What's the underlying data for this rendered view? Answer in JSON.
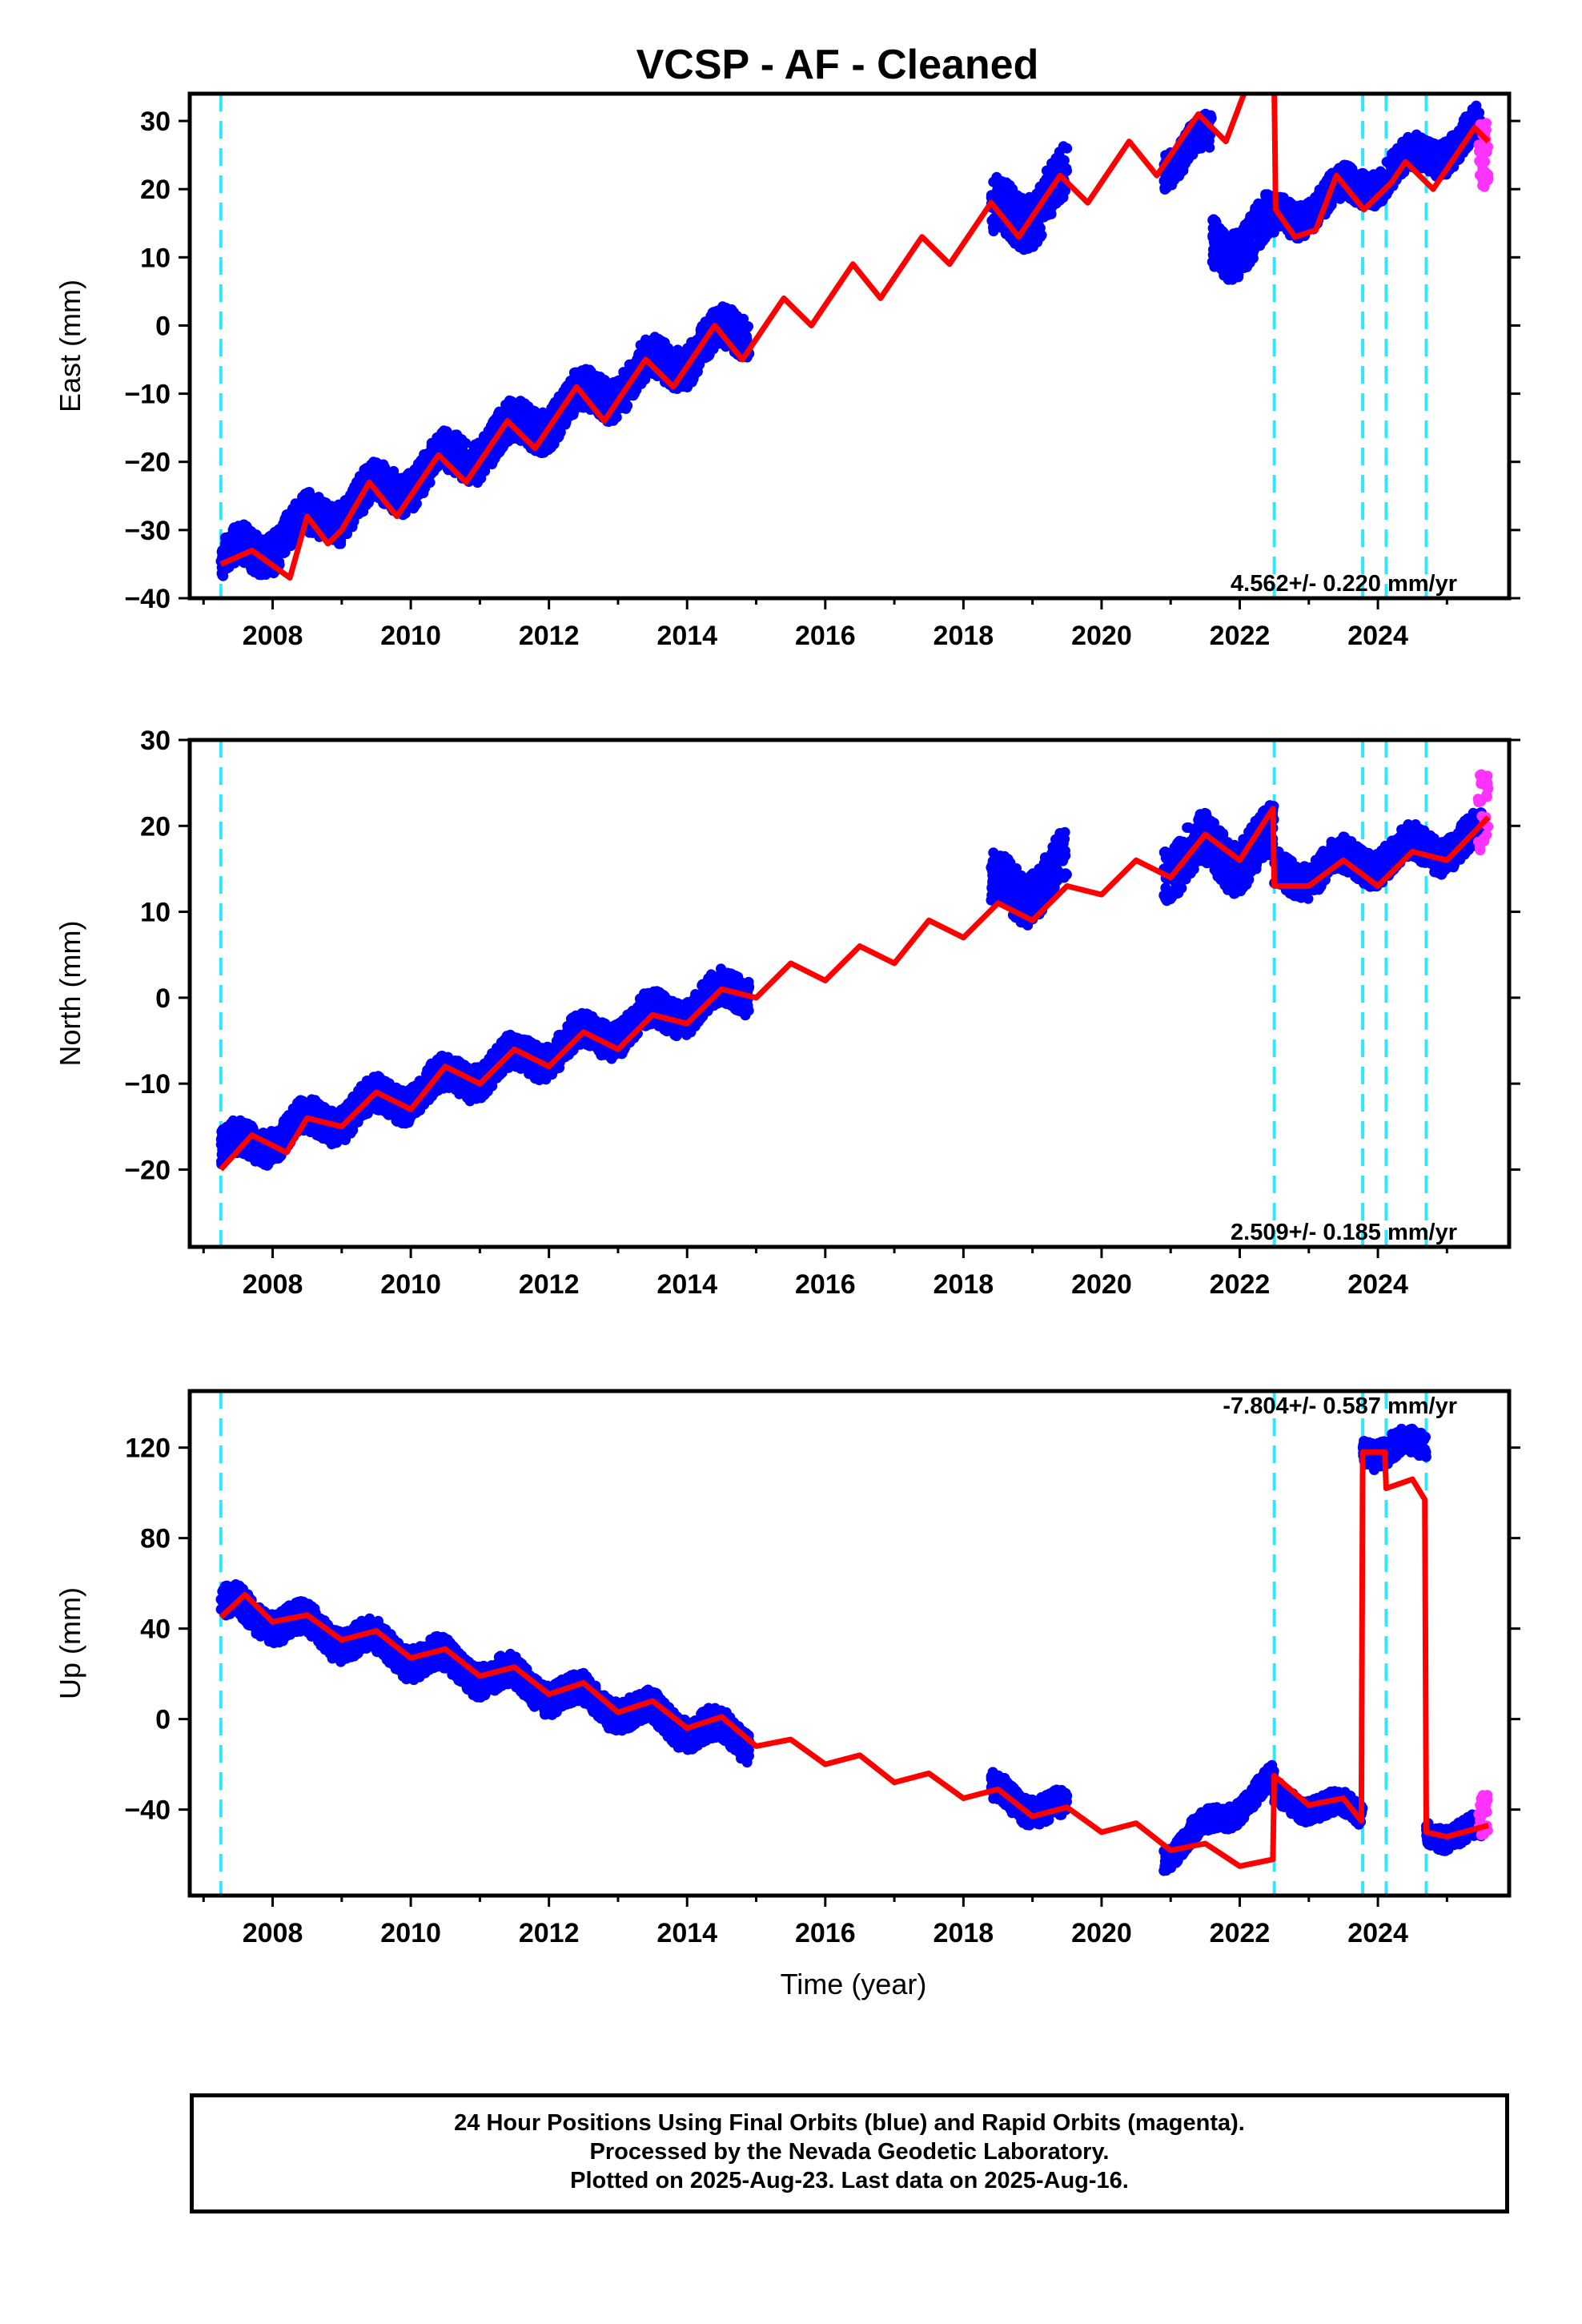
{
  "title": "VCSP  - AF - Cleaned",
  "footer": {
    "line1": "24 Hour Positions Using Final Orbits (blue) and Rapid Orbits (magenta).",
    "line2": "Processed by the Nevada Geodetic Laboratory.",
    "line3": "Plotted on 2025-Aug-23. Last data on 2025-Aug-16."
  },
  "colors": {
    "final_orbits": "#0000ff",
    "rapid_orbits": "#ff33ff",
    "model": "#ff0000",
    "events": "#33e6ff"
  },
  "chart_data": [
    {
      "type": "scatter",
      "ylabel": "East (mm)",
      "xlabel": "",
      "xlim": [
        2006.8,
        2025.9
      ],
      "ylim": [
        -40,
        34
      ],
      "yticks": [
        -40,
        -30,
        -20,
        -10,
        0,
        10,
        20,
        30
      ],
      "xticks": [
        2008,
        2010,
        2012,
        2014,
        2016,
        2018,
        2020,
        2022,
        2024
      ],
      "rate_label": "4.562+/- 0.220 mm/yr",
      "event_lines": [
        2007.25,
        2022.5,
        2023.78,
        2024.12,
        2024.7
      ],
      "model_curve": {
        "name": "model",
        "x": [
          2007.25,
          2007.7,
          2008.25,
          2008.5,
          2008.8,
          2009.0,
          2009.4,
          2009.8,
          2010.4,
          2010.8,
          2011.4,
          2011.8,
          2012.4,
          2012.8,
          2013.4,
          2013.8,
          2014.4,
          2014.8,
          2015.4,
          2015.8,
          2016.4,
          2016.8,
          2017.4,
          2017.8,
          2018.4,
          2018.8,
          2019.4,
          2019.8,
          2020.4,
          2020.8,
          2021.4,
          2021.8,
          2022.1,
          2022.5,
          2022.52,
          2022.8,
          2023.1,
          2023.4,
          2023.8,
          2024.2,
          2024.4,
          2024.8,
          2025.4,
          2025.6
        ],
        "y": [
          -35,
          -33,
          -37,
          -28,
          -32,
          -30,
          -23,
          -28,
          -19,
          -23,
          -14,
          -18,
          -9,
          -14,
          -5,
          -9,
          0,
          -5,
          4,
          0,
          9,
          4,
          13,
          9,
          18,
          13,
          22,
          18,
          27,
          22,
          31,
          27,
          35,
          35,
          17,
          13,
          14,
          22,
          17,
          21,
          24,
          20,
          29,
          27
        ]
      },
      "series": [
        {
          "segments": [
            {
              "x0": 2007.25,
              "x1": 2014.9,
              "slope": 4.56,
              "y0": -35,
              "spread": 6
            },
            {
              "x0": 2018.4,
              "x1": 2019.5,
              "slope": 4.5,
              "y0": 15,
              "spread": 8
            },
            {
              "x0": 2020.9,
              "x1": 2021.6,
              "slope": 5,
              "y0": 24,
              "spread": 5
            },
            {
              "x0": 2021.6,
              "x1": 2022.5,
              "slope": 4,
              "y0": 11,
              "spread": 7
            },
            {
              "x0": 2022.5,
              "x1": 2025.5,
              "slope": 4.5,
              "y0": 15,
              "spread": 5
            }
          ]
        },
        {
          "name": "rapid",
          "x0": 2025.45,
          "x1": 2025.6,
          "y_range": [
            20,
            30
          ]
        }
      ]
    },
    {
      "type": "scatter",
      "ylabel": "North (mm)",
      "xlabel": "",
      "xlim": [
        2006.8,
        2025.9
      ],
      "ylim": [
        -29,
        30
      ],
      "yticks": [
        -20,
        -10,
        0,
        10,
        20,
        30
      ],
      "xticks": [
        2008,
        2010,
        2012,
        2014,
        2016,
        2018,
        2020,
        2022,
        2024
      ],
      "rate_label": "2.509+/- 0.185 mm/yr",
      "event_lines": [
        2007.25,
        2022.5,
        2023.78,
        2024.12,
        2024.7
      ],
      "model_curve": {
        "name": "model",
        "x": [
          2007.25,
          2007.7,
          2008.2,
          2008.5,
          2009.0,
          2009.5,
          2010.0,
          2010.5,
          2011.0,
          2011.5,
          2012.0,
          2012.5,
          2013.0,
          2013.5,
          2014.0,
          2014.5,
          2015.0,
          2015.5,
          2016.0,
          2016.5,
          2017.0,
          2017.5,
          2018.0,
          2018.5,
          2019.0,
          2019.5,
          2020.0,
          2020.5,
          2021.0,
          2021.5,
          2022.0,
          2022.48,
          2022.5,
          2023.0,
          2023.5,
          2024.0,
          2024.5,
          2025.0,
          2025.6
        ],
        "y": [
          -20,
          -16,
          -18,
          -14,
          -15,
          -11,
          -13,
          -8,
          -10,
          -6,
          -8,
          -4,
          -6,
          -2,
          -3,
          1,
          0,
          4,
          2,
          6,
          4,
          9,
          7,
          11,
          9,
          13,
          12,
          16,
          14,
          19,
          16,
          22,
          13,
          13,
          16,
          13,
          17,
          16,
          21
        ]
      },
      "series": [
        {
          "segments": [
            {
              "x0": 2007.25,
              "x1": 2014.9,
              "slope": 2.5,
              "y0": -18,
              "spread": 4
            },
            {
              "x0": 2018.4,
              "x1": 2019.5,
              "slope": 2.5,
              "y0": 12,
              "spread": 6
            },
            {
              "x0": 2020.9,
              "x1": 2022.5,
              "slope": 1,
              "y0": 16,
              "spread": 6
            },
            {
              "x0": 2022.5,
              "x1": 2025.5,
              "slope": 1.5,
              "y0": 14,
              "spread": 4
            }
          ]
        },
        {
          "name": "rapid",
          "x0": 2025.45,
          "x1": 2025.6,
          "y_range": [
            17,
            26
          ]
        }
      ]
    },
    {
      "type": "scatter",
      "ylabel": "Up (mm)",
      "xlabel": "Time (year)",
      "xlim": [
        2006.8,
        2025.9
      ],
      "ylim": [
        -78,
        145
      ],
      "yticks": [
        -40,
        0,
        40,
        80,
        120
      ],
      "xticks": [
        2008,
        2010,
        2012,
        2014,
        2016,
        2018,
        2020,
        2022,
        2024
      ],
      "rate_label": "-7.804+/- 0.587 mm/yr",
      "event_lines": [
        2007.25,
        2022.5,
        2023.78,
        2024.12,
        2024.7
      ],
      "model_curve": {
        "name": "model",
        "x": [
          2007.25,
          2007.6,
          2008.0,
          2008.5,
          2009.0,
          2009.5,
          2010.0,
          2010.5,
          2011.0,
          2011.5,
          2012.0,
          2012.5,
          2013.0,
          2013.5,
          2014.0,
          2014.5,
          2015.0,
          2015.5,
          2016.0,
          2016.5,
          2017.0,
          2017.5,
          2018.0,
          2018.5,
          2019.0,
          2019.5,
          2020.0,
          2020.5,
          2021.0,
          2021.5,
          2022.0,
          2022.48,
          2022.5,
          2023.0,
          2023.5,
          2023.76,
          2023.78,
          2024.1,
          2024.12,
          2024.5,
          2024.68,
          2024.7,
          2025.0,
          2025.6
        ],
        "y": [
          45,
          55,
          43,
          46,
          35,
          39,
          27,
          31,
          19,
          23,
          11,
          16,
          3,
          8,
          -4,
          1,
          -12,
          -9,
          -20,
          -16,
          -28,
          -24,
          -35,
          -31,
          -43,
          -39,
          -50,
          -46,
          -58,
          -55,
          -65,
          -62,
          -25,
          -38,
          -35,
          -45,
          118,
          118,
          102,
          106,
          97,
          -50,
          -52,
          -47
        ]
      },
      "series": [
        {
          "segments": [
            {
              "x0": 2007.25,
              "x1": 2014.9,
              "slope": -7.8,
              "y0": 50,
              "spread": 14
            },
            {
              "x0": 2018.4,
              "x1": 2019.5,
              "slope": -7.8,
              "y0": -33,
              "spread": 12
            },
            {
              "x0": 2020.9,
              "x1": 2022.5,
              "slope": 20,
              "y0": -60,
              "spread": 10
            },
            {
              "x0": 2022.5,
              "x1": 2023.78,
              "slope": -5,
              "y0": -35,
              "spread": 10
            },
            {
              "x0": 2023.78,
              "x1": 2024.7,
              "slope": 0,
              "y0": 120,
              "spread": 12
            },
            {
              "x0": 2024.7,
              "x1": 2025.5,
              "slope": 0,
              "y0": -50,
              "spread": 10
            }
          ]
        },
        {
          "name": "rapid",
          "x0": 2025.45,
          "x1": 2025.6,
          "y_range": [
            -52,
            -33
          ]
        }
      ]
    }
  ]
}
